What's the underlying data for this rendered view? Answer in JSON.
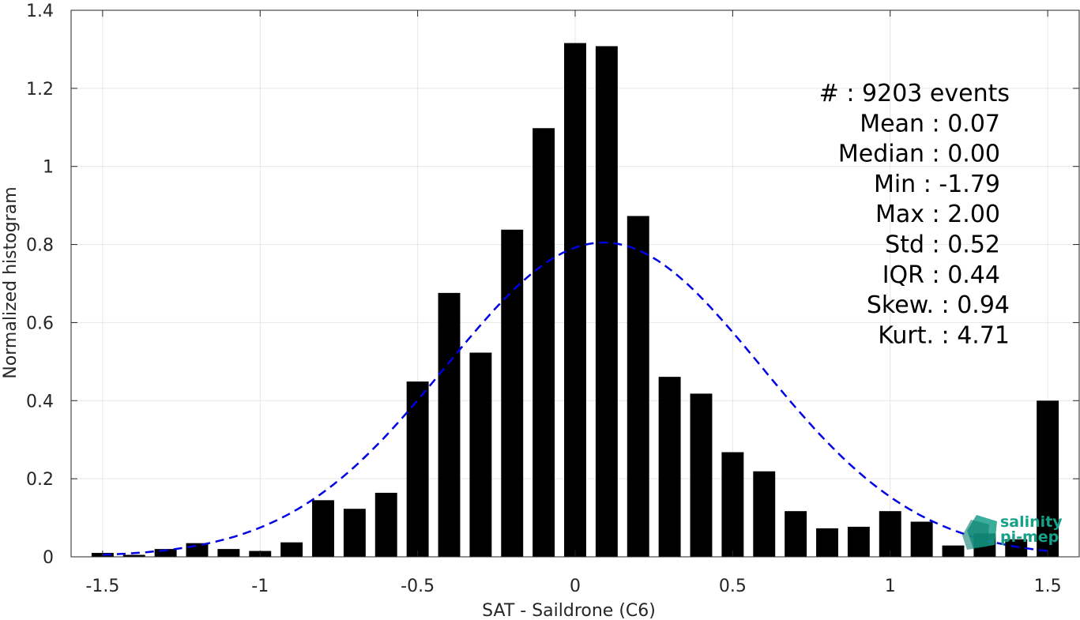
{
  "chart_data": {
    "type": "bar",
    "xlabel": "SAT - Saildrone (C6)",
    "ylabel": "Normalized histogram",
    "xlim": [
      -1.6,
      1.6
    ],
    "ylim": [
      0,
      1.4
    ],
    "xticks": [
      -1.5,
      -1,
      -0.5,
      0,
      0.5,
      1,
      1.5
    ],
    "xtick_labels": [
      "-1.5",
      "-1",
      "-0.5",
      "0",
      "0.5",
      "1",
      "1.5"
    ],
    "yticks": [
      0,
      0.2,
      0.4,
      0.6,
      0.8,
      1,
      1.2,
      1.4
    ],
    "ytick_labels": [
      "0",
      "0.2",
      "0.4",
      "0.6",
      "0.8",
      "1",
      "1.2",
      "1.4"
    ],
    "grid": true,
    "bar_color": "#000000",
    "bins": [
      {
        "x": -1.5,
        "y": 0.01
      },
      {
        "x": -1.4,
        "y": 0.005
      },
      {
        "x": -1.3,
        "y": 0.02
      },
      {
        "x": -1.2,
        "y": 0.035
      },
      {
        "x": -1.1,
        "y": 0.02
      },
      {
        "x": -1.0,
        "y": 0.015
      },
      {
        "x": -0.9,
        "y": 0.037
      },
      {
        "x": -0.8,
        "y": 0.145
      },
      {
        "x": -0.7,
        "y": 0.123
      },
      {
        "x": -0.6,
        "y": 0.164
      },
      {
        "x": -0.5,
        "y": 0.449
      },
      {
        "x": -0.4,
        "y": 0.676
      },
      {
        "x": -0.3,
        "y": 0.523
      },
      {
        "x": -0.2,
        "y": 0.838
      },
      {
        "x": -0.1,
        "y": 1.098
      },
      {
        "x": 0.0,
        "y": 1.316
      },
      {
        "x": 0.1,
        "y": 1.308
      },
      {
        "x": 0.2,
        "y": 0.873
      },
      {
        "x": 0.3,
        "y": 0.461
      },
      {
        "x": 0.4,
        "y": 0.418
      },
      {
        "x": 0.5,
        "y": 0.268
      },
      {
        "x": 0.6,
        "y": 0.219
      },
      {
        "x": 0.7,
        "y": 0.117
      },
      {
        "x": 0.8,
        "y": 0.073
      },
      {
        "x": 0.9,
        "y": 0.077
      },
      {
        "x": 1.0,
        "y": 0.117
      },
      {
        "x": 1.1,
        "y": 0.09
      },
      {
        "x": 1.2,
        "y": 0.029
      },
      {
        "x": 1.3,
        "y": 0.06
      },
      {
        "x": 1.4,
        "y": 0.045
      },
      {
        "x": 1.5,
        "y": 0.4
      }
    ],
    "fit_curve": {
      "type": "gaussian",
      "mean": 0.09,
      "std": 0.5,
      "peak": 0.805,
      "color": "#0000e6",
      "style": "dashed",
      "x_range": [
        -1.5,
        1.5
      ]
    },
    "annotations": [
      "#  : 9203 events",
      "Mean : 0.07",
      "Median : 0.00",
      "Min : -1.79",
      "Max : 2.00",
      "Std : 0.52",
      "IQR : 0.44",
      "Skew. : 0.94",
      "Kurt. : 4.71"
    ]
  },
  "logo": {
    "line1": "salinity",
    "line2": "pi-mep",
    "color": "#17a08a"
  }
}
